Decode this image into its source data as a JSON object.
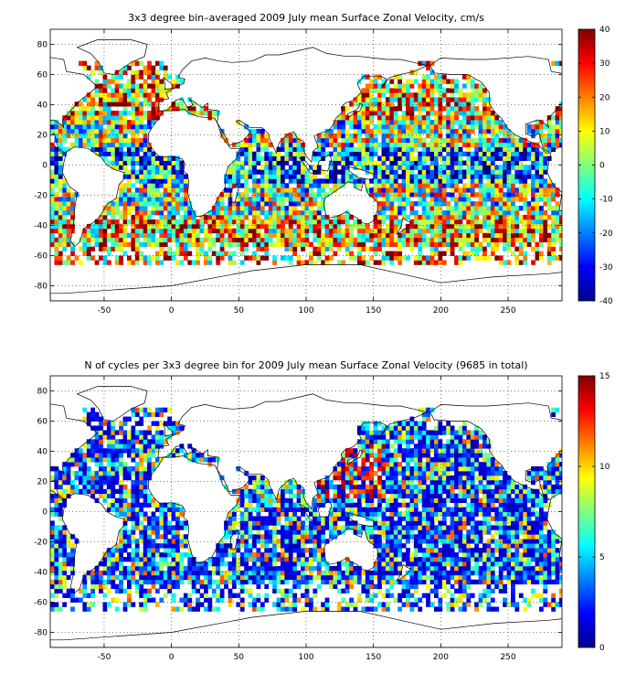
{
  "figure": {
    "panels": [
      {
        "title": "3x3 degree bin–averaged 2009 July mean Surface Zonal Velocity, cm/s",
        "xticks": [
          "-50",
          "0",
          "50",
          "100",
          "150",
          "200",
          "250"
        ],
        "yticks": [
          "80",
          "60",
          "40",
          "20",
          "0",
          "-20",
          "-40",
          "-60",
          "-80"
        ],
        "colorbar_ticks": [
          "40",
          "30",
          "20",
          "10",
          "0",
          "-10",
          "-20",
          "-30",
          "-40"
        ]
      },
      {
        "title": "N of cycles per 3x3 degree bin for 2009 July mean Surface Zonal Velocity (9685 in total)",
        "xticks": [
          "-50",
          "0",
          "50",
          "100",
          "150",
          "200",
          "250"
        ],
        "yticks": [
          "80",
          "60",
          "40",
          "20",
          "0",
          "-20",
          "-40",
          "-60",
          "-80"
        ],
        "colorbar_ticks": [
          "15",
          "10",
          "5",
          "0"
        ]
      }
    ]
  },
  "chart_data": [
    {
      "type": "heatmap",
      "title": "3x3 degree bin–averaged 2009 July mean Surface Zonal Velocity, cm/s",
      "xlim": [
        -90,
        290
      ],
      "ylim": [
        -90,
        90
      ],
      "bin_size_deg": 3,
      "colormap": "jet",
      "clim": [
        -40,
        40
      ],
      "units": "cm/s",
      "grid": true
    },
    {
      "type": "heatmap",
      "title": "N of cycles per 3x3 degree bin for 2009 July mean Surface Zonal Velocity (9685 in total)",
      "xlim": [
        -90,
        290
      ],
      "ylim": [
        -90,
        90
      ],
      "bin_size_deg": 3,
      "colormap": "jet",
      "clim": [
        0,
        15
      ],
      "total": 9685,
      "grid": true
    }
  ]
}
